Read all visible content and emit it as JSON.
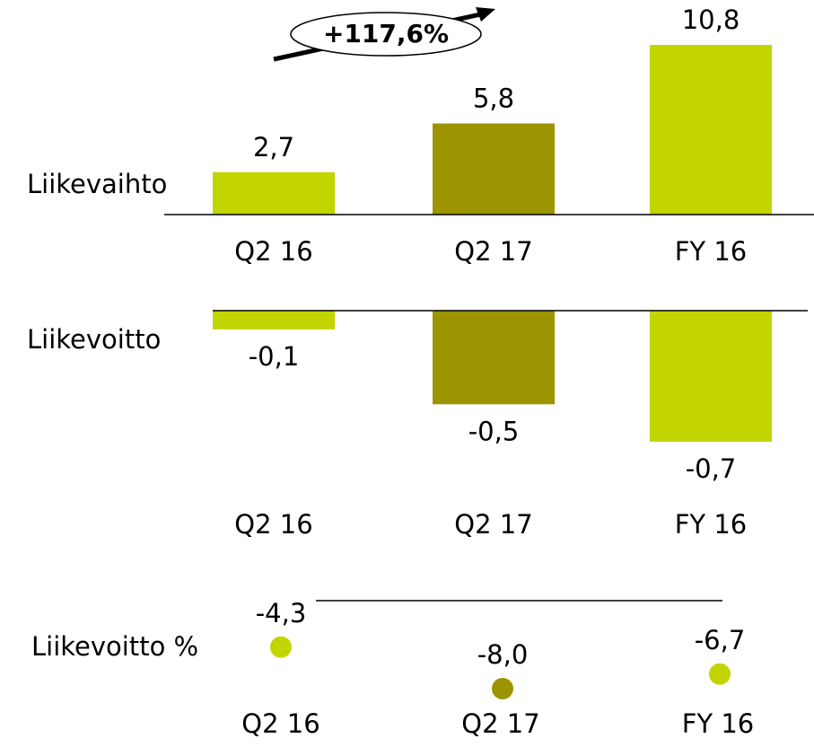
{
  "chart_data": [
    {
      "type": "bar",
      "title": "Liikevaihto",
      "annotation": "+117,6%",
      "categories": [
        "Q2 16",
        "Q2 17",
        "FY 16"
      ],
      "values": [
        2.7,
        5.8,
        10.8
      ],
      "value_labels": [
        "2,7",
        "5,8",
        "10,8"
      ],
      "colors": [
        "#c2d500",
        "#9c9400",
        "#c2d500"
      ],
      "ylim": [
        0,
        11
      ]
    },
    {
      "type": "bar",
      "title": "Liikevoitto",
      "categories": [
        "Q2 16",
        "Q2 17",
        "FY 16"
      ],
      "values": [
        -0.1,
        -0.5,
        -0.7
      ],
      "value_labels": [
        "-0,1",
        "-0,5",
        "-0,7"
      ],
      "colors": [
        "#c2d500",
        "#9c9400",
        "#c2d500"
      ],
      "ylim": [
        -0.7,
        0
      ]
    },
    {
      "type": "scatter",
      "title": "Liikevoitto %",
      "categories": [
        "Q2 16",
        "Q2 17",
        "FY 16"
      ],
      "values": [
        -4.3,
        -8.0,
        -6.7
      ],
      "value_labels": [
        "-4,3",
        "-8,0",
        "-6,7"
      ],
      "colors": [
        "#c2d500",
        "#9c9400",
        "#c2d500"
      ],
      "ylim": [
        -8,
        0
      ]
    }
  ]
}
